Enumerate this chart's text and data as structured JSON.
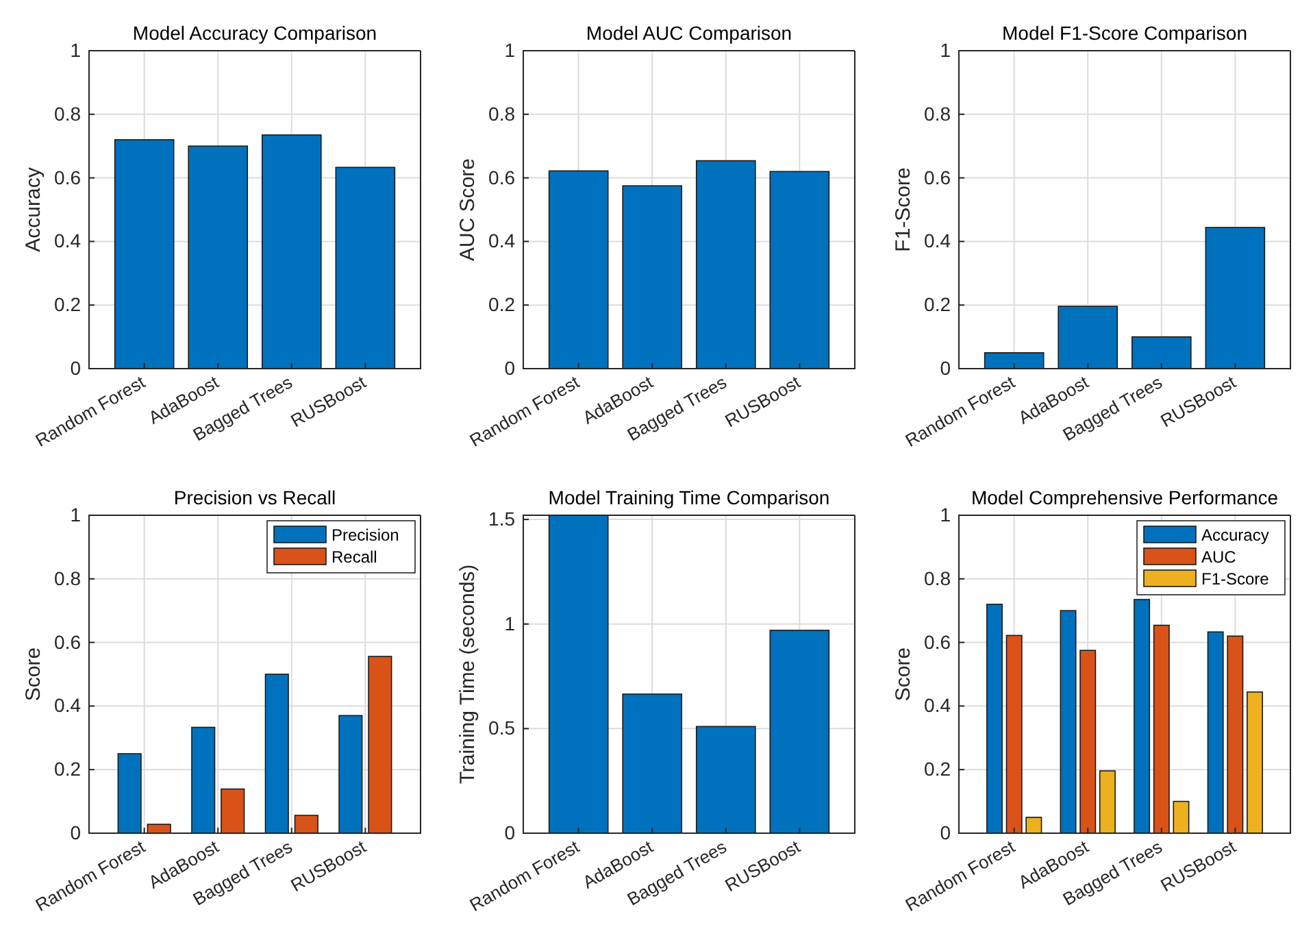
{
  "chart_data": [
    {
      "type": "bar",
      "title": "Model Accuracy Comparison",
      "ylabel": "Accuracy",
      "categories": [
        "Random Forest",
        "AdaBoost",
        "Bagged Trees",
        "RUSBoost"
      ],
      "series": [
        {
          "color": "#0072bd",
          "values": [
            0.72,
            0.7,
            0.735,
            0.633
          ]
        }
      ],
      "ylim": [
        0,
        1
      ],
      "yticks": [
        0,
        0.2,
        0.4,
        0.6,
        0.8,
        1
      ],
      "grid": true
    },
    {
      "type": "bar",
      "title": "Model AUC Comparison",
      "ylabel": "AUC Score",
      "categories": [
        "Random Forest",
        "AdaBoost",
        "Bagged Trees",
        "RUSBoost"
      ],
      "series": [
        {
          "color": "#0072bd",
          "values": [
            0.622,
            0.575,
            0.654,
            0.62
          ]
        }
      ],
      "ylim": [
        0,
        1
      ],
      "yticks": [
        0,
        0.2,
        0.4,
        0.6,
        0.8,
        1
      ],
      "grid": true
    },
    {
      "type": "bar",
      "title": "Model F1-Score Comparison",
      "ylabel": "F1-Score",
      "categories": [
        "Random Forest",
        "AdaBoost",
        "Bagged Trees",
        "RUSBoost"
      ],
      "series": [
        {
          "color": "#0072bd",
          "values": [
            0.05,
            0.196,
            0.1,
            0.444
          ]
        }
      ],
      "ylim": [
        0,
        1
      ],
      "yticks": [
        0,
        0.2,
        0.4,
        0.6,
        0.8,
        1
      ],
      "grid": true
    },
    {
      "type": "bar",
      "title": "Precision vs Recall",
      "ylabel": "Score",
      "categories": [
        "Random Forest",
        "AdaBoost",
        "Bagged Trees",
        "RUSBoost"
      ],
      "series": [
        {
          "name": "Precision",
          "color": "#0072bd",
          "values": [
            0.25,
            0.333,
            0.5,
            0.37
          ]
        },
        {
          "name": "Recall",
          "color": "#d95319",
          "values": [
            0.028,
            0.139,
            0.056,
            0.556
          ]
        }
      ],
      "ylim": [
        0,
        1
      ],
      "yticks": [
        0,
        0.2,
        0.4,
        0.6,
        0.8,
        1
      ],
      "grid": true,
      "legend": "top right"
    },
    {
      "type": "bar",
      "title": "Model Training Time Comparison",
      "ylabel": "Training Time (seconds)",
      "categories": [
        "Random Forest",
        "AdaBoost",
        "Bagged Trees",
        "RUSBoost"
      ],
      "series": [
        {
          "color": "#0072bd",
          "values": [
            1.52,
            0.665,
            0.51,
            0.97
          ]
        }
      ],
      "ylim": [
        0,
        1.52
      ],
      "yticks": [
        0,
        0.5,
        1,
        1.5
      ],
      "grid": true
    },
    {
      "type": "bar",
      "title": "Model Comprehensive Performance",
      "ylabel": "Score",
      "categories": [
        "Random Forest",
        "AdaBoost",
        "Bagged Trees",
        "RUSBoost"
      ],
      "series": [
        {
          "name": "Accuracy",
          "color": "#0072bd",
          "values": [
            0.72,
            0.7,
            0.735,
            0.633
          ]
        },
        {
          "name": "AUC",
          "color": "#d95319",
          "values": [
            0.622,
            0.575,
            0.654,
            0.62
          ]
        },
        {
          "name": "F1-Score",
          "color": "#edb120",
          "values": [
            0.05,
            0.196,
            0.1,
            0.444
          ]
        }
      ],
      "ylim": [
        0,
        1
      ],
      "yticks": [
        0,
        0.2,
        0.4,
        0.6,
        0.8,
        1
      ],
      "grid": true,
      "legend": "top right"
    }
  ]
}
